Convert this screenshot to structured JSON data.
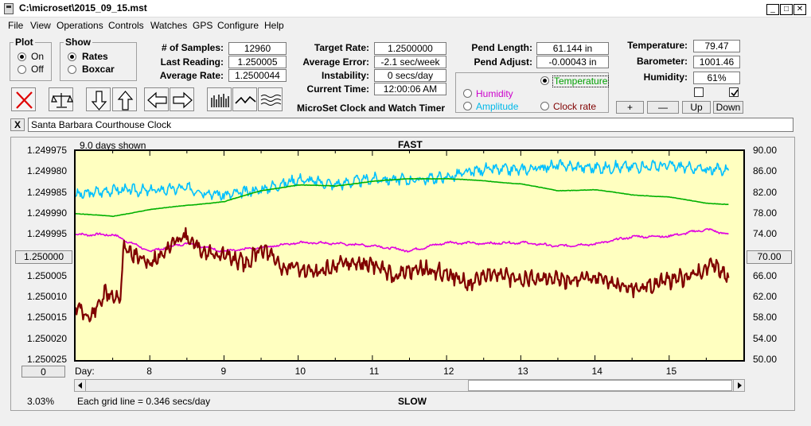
{
  "window": {
    "title": "C:\\microset\\2015_09_15.mst"
  },
  "menu": [
    "File",
    "View",
    "Operations",
    "Controls",
    "Watches",
    "GPS",
    "Configure",
    "Help"
  ],
  "plot_group": {
    "label": "Plot",
    "on_label": "On",
    "off_label": "Off",
    "selected": "On"
  },
  "show_group": {
    "label": "Show",
    "rates_label": "Rates",
    "boxcar_label": "Boxcar",
    "selected": "Rates"
  },
  "stats": {
    "samples_label": "# of Samples:",
    "samples": "12960",
    "last_reading_label": "Last Reading:",
    "last_reading": "1.250005",
    "average_rate_label": "Average Rate:",
    "average_rate": "1.2500044"
  },
  "target": {
    "target_rate_label": "Target Rate:",
    "target_rate": "1.2500000",
    "average_error_label": "Average Error:",
    "average_error": "-2.1 sec/week",
    "instability_label": "Instability:",
    "instability": "0 secs/day",
    "current_time_label": "Current Time:",
    "current_time": "12:00:06 AM",
    "product_name": "MicroSet Clock and Watch Timer"
  },
  "pendulum": {
    "length_label": "Pend Length:",
    "length": "61.144 in",
    "adjust_label": "Pend Adjust:",
    "adjust": "-0.00043 in"
  },
  "sensor_select": {
    "temperature": "Temperature",
    "humidity": "Humidity",
    "amplitude": "Amplitude",
    "clock_rate": "Clock rate",
    "selected": "Temperature"
  },
  "environment": {
    "temperature_label": "Temperature:",
    "temperature": "79.47",
    "barometer_label": "Barometer:",
    "barometer": "1001.46",
    "humidity_label": "Humidity:",
    "humidity": "61%",
    "check1": false,
    "check2": true
  },
  "adjust_buttons": {
    "plus": "+",
    "minus": "—",
    "up": "Up",
    "down": "Down"
  },
  "clock_name": {
    "close_label": "X",
    "value": "Santa Barbara Courthouse Clock"
  },
  "chart_header": {
    "days_shown": "9.0 days shown",
    "fast_label": "FAST",
    "slow_label": "SLOW",
    "day_label": "Day:",
    "grid_note": "Each grid line = 0.346 secs/day",
    "percent": "3.03%",
    "left_center_button": "1.250000",
    "right_center_button": "70.00",
    "bottom_left_button": "0"
  },
  "colors": {
    "plot_bg": "#ffffc0",
    "rate": "#800000",
    "temperature": "#00c0ff",
    "humidity": "#00b000",
    "barometer": "#e000e0"
  },
  "chart_data": {
    "type": "line",
    "x_label": "Day:",
    "x_ticks": [
      "8",
      "9",
      "10",
      "11",
      "12",
      "13",
      "14",
      "15"
    ],
    "xlim": [
      7.0,
      16.0
    ],
    "y_left_ticks": [
      "1.249975",
      "1.249980",
      "1.249985",
      "1.249990",
      "1.249995",
      "1.250000",
      "1.250005",
      "1.250010",
      "1.250015",
      "1.250020",
      "1.250025"
    ],
    "y_left_lim": [
      1.250025,
      1.249975
    ],
    "y_right_ticks": [
      "90.00",
      "86.00",
      "82.00",
      "78.00",
      "74.00",
      "70.00",
      "66.00",
      "62.00",
      "58.00",
      "54.00",
      "50.00"
    ],
    "y_right_lim": [
      50,
      90
    ],
    "series": [
      {
        "name": "Temperature",
        "axis": "right",
        "color": "#00c0ff",
        "x": [
          7.0,
          7.5,
          8.0,
          8.5,
          9.0,
          9.5,
          10.0,
          10.5,
          11.0,
          11.5,
          12.0,
          12.5,
          13.0,
          13.5,
          14.0,
          14.5,
          15.0,
          15.5,
          15.8
        ],
        "y": [
          81.5,
          82.6,
          82.4,
          82.9,
          81.5,
          82.6,
          84.6,
          83.6,
          84.7,
          84.4,
          85.0,
          86.5,
          86.4,
          87.2,
          86.8,
          87.0,
          87.2,
          86.4,
          86.5
        ]
      },
      {
        "name": "Humidity",
        "axis": "right",
        "color": "#00b000",
        "x": [
          7.0,
          7.5,
          8.0,
          8.5,
          9.0,
          9.5,
          10.0,
          10.5,
          11.0,
          11.5,
          12.0,
          12.5,
          13.0,
          13.5,
          14.0,
          14.5,
          15.0,
          15.5,
          15.8
        ],
        "y": [
          78.0,
          77.5,
          78.8,
          79.6,
          80.3,
          82.4,
          83.5,
          83.3,
          84.2,
          84.7,
          84.7,
          84.3,
          83.7,
          82.4,
          82.6,
          81.6,
          81.2,
          80.0,
          79.8
        ]
      },
      {
        "name": "Barometer",
        "axis": "right",
        "color": "#e000e0",
        "x": [
          7.0,
          7.5,
          8.0,
          8.5,
          9.0,
          9.5,
          10.0,
          10.5,
          11.0,
          11.5,
          12.0,
          12.5,
          13.0,
          13.5,
          14.0,
          14.5,
          15.0,
          15.5,
          15.8
        ],
        "y": [
          74.0,
          74.0,
          70.8,
          72.4,
          70.8,
          71.5,
          72.5,
          72.3,
          71.9,
          70.9,
          72.5,
          72.3,
          72.5,
          71.8,
          72.2,
          73.6,
          73.7,
          75.0,
          74.1
        ]
      },
      {
        "name": "Rate",
        "axis": "left",
        "color": "#800000",
        "x": [
          7.0,
          7.2,
          7.4,
          7.6,
          7.65,
          7.8,
          8.0,
          8.2,
          8.45,
          8.7,
          9.0,
          9.3,
          9.5,
          9.8,
          10.0,
          10.3,
          10.6,
          11.0,
          11.3,
          11.6,
          12.0,
          12.3,
          12.6,
          13.0,
          13.3,
          13.6,
          14.0,
          14.3,
          14.6,
          15.0,
          15.3,
          15.6,
          15.8
        ],
        "y": [
          1.250012,
          1.250015,
          1.250009,
          1.25001,
          1.249998,
          1.25,
          1.250002,
          1.249999,
          1.249995,
          1.249999,
          1.25,
          1.250002,
          1.249998,
          1.250003,
          1.250003,
          1.250004,
          1.250002,
          1.250002,
          1.250005,
          1.250003,
          1.250004,
          1.250007,
          1.250004,
          1.250006,
          1.250005,
          1.250006,
          1.250005,
          1.250007,
          1.250008,
          1.250006,
          1.250005,
          1.250002,
          1.250005
        ]
      }
    ]
  }
}
